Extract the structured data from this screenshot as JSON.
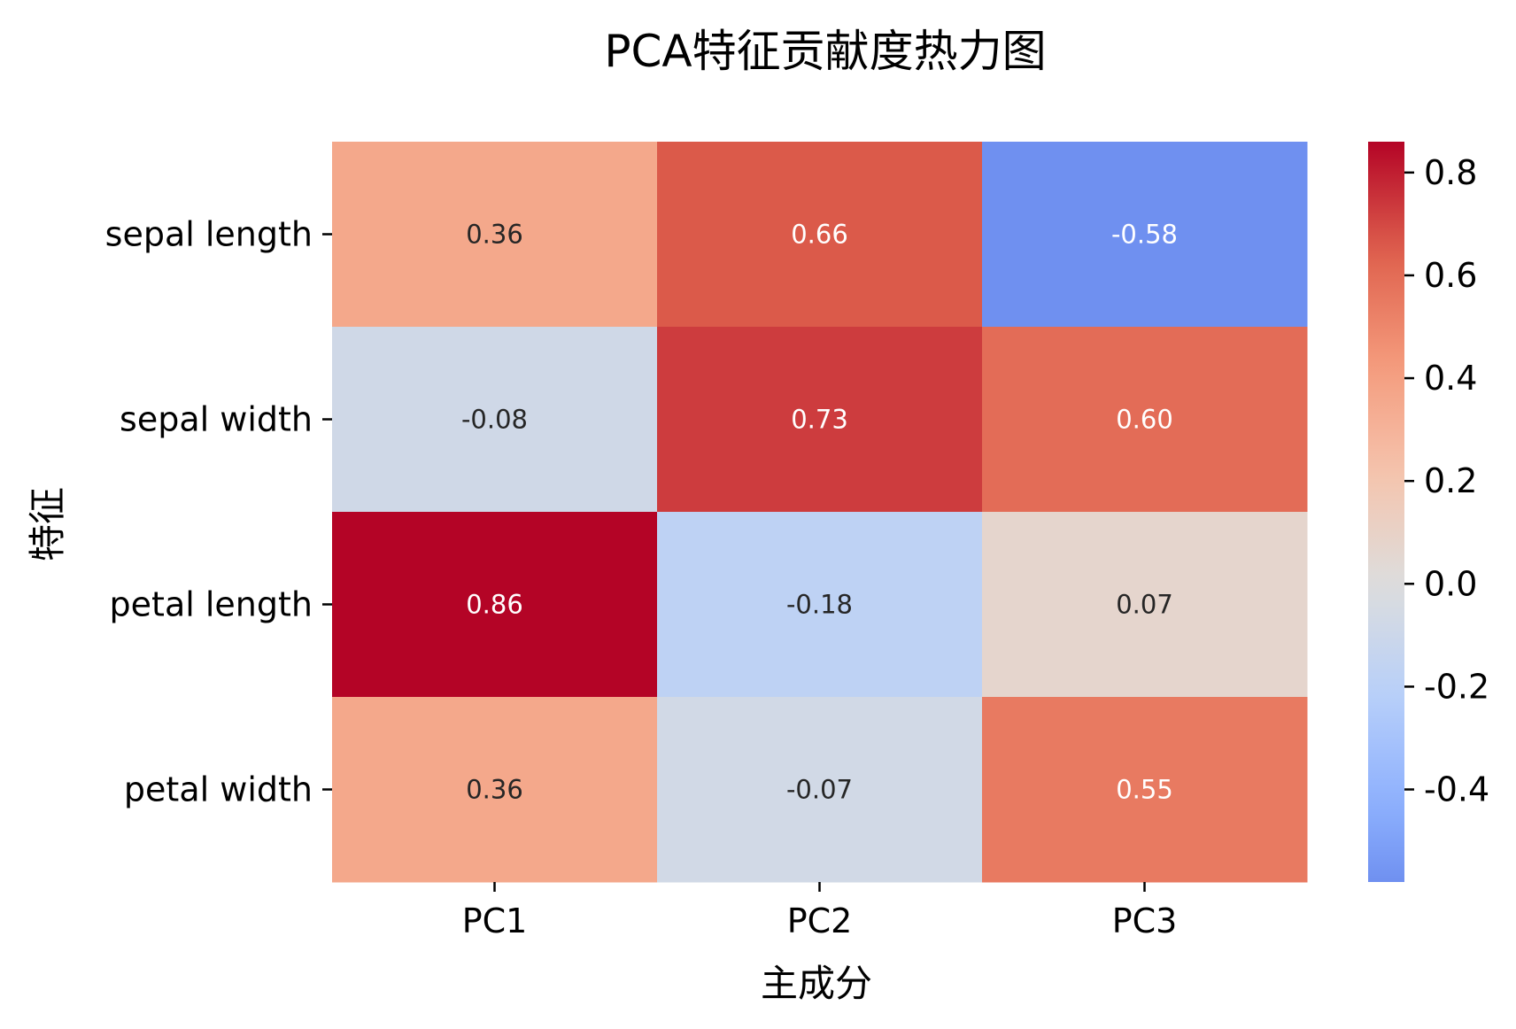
{
  "chart_data": {
    "type": "heatmap",
    "title": "PCA特征贡献度热力图",
    "xlabel": "主成分",
    "ylabel": "特征",
    "x_categories": [
      "PC1",
      "PC2",
      "PC3"
    ],
    "y_categories": [
      "sepal length",
      "sepal width",
      "petal length",
      "petal width"
    ],
    "values": [
      [
        0.36,
        0.66,
        -0.58
      ],
      [
        -0.08,
        0.73,
        0.6
      ],
      [
        0.86,
        -0.18,
        0.07
      ],
      [
        0.36,
        -0.07,
        0.55
      ]
    ],
    "cell_labels": [
      [
        "0.36",
        "0.66",
        "-0.58"
      ],
      [
        "-0.08",
        "0.73",
        "0.60"
      ],
      [
        "0.86",
        "-0.18",
        "0.07"
      ],
      [
        "0.36",
        "-0.07",
        "0.55"
      ]
    ],
    "colormap": "coolwarm",
    "color_range": [
      -0.58,
      0.86
    ],
    "center": 0,
    "colorbar": {
      "ticks": [
        0.8,
        0.6,
        0.4,
        0.2,
        0.0,
        -0.2,
        -0.4
      ],
      "tick_labels": [
        "0.8",
        "0.6",
        "0.4",
        "0.2",
        "0.0",
        "-0.2",
        "-0.4"
      ],
      "placement": "right"
    },
    "grid": false
  }
}
